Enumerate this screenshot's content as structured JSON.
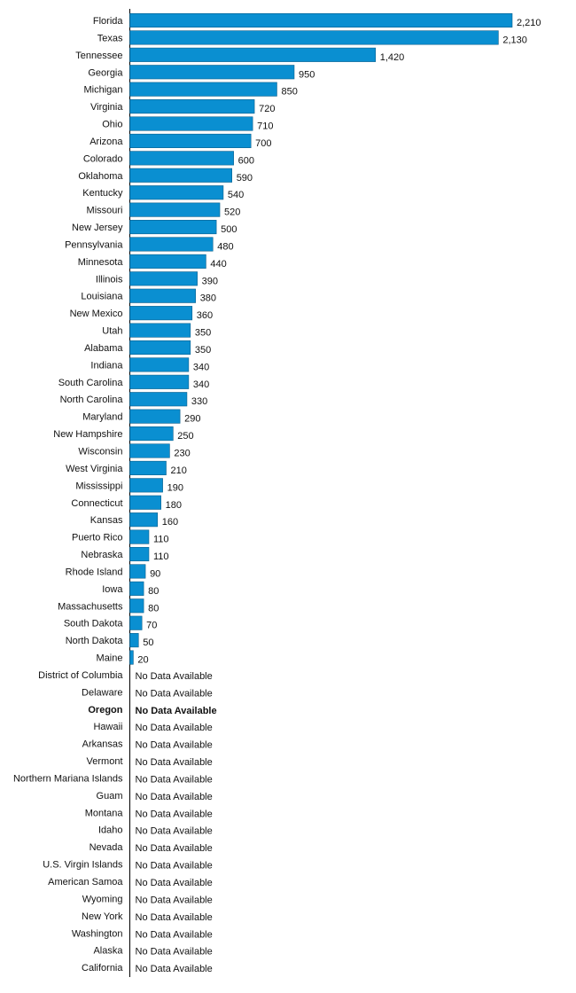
{
  "chart_data": {
    "type": "bar",
    "orientation": "horizontal",
    "bar_color": "#0a8fd1",
    "bar_edge_color": "#0b5f8c",
    "grid": false,
    "missing_label": "No Data Available",
    "highlighted_category": "Oregon",
    "categories": [
      "Florida",
      "Texas",
      "Tennessee",
      "Georgia",
      "Michigan",
      "Virginia",
      "Ohio",
      "Arizona",
      "Colorado",
      "Oklahoma",
      "Kentucky",
      "Missouri",
      "New Jersey",
      "Pennsylvania",
      "Minnesota",
      "Illinois",
      "Louisiana",
      "New Mexico",
      "Utah",
      "Alabama",
      "Indiana",
      "South Carolina",
      "North Carolina",
      "Maryland",
      "New Hampshire",
      "Wisconsin",
      "West Virginia",
      "Mississippi",
      "Connecticut",
      "Kansas",
      "Puerto Rico",
      "Nebraska",
      "Rhode Island",
      "Iowa",
      "Massachusetts",
      "South Dakota",
      "North Dakota",
      "Maine",
      "District of Columbia",
      "Delaware",
      "Oregon",
      "Hawaii",
      "Arkansas",
      "Vermont",
      "Northern Mariana Islands",
      "Guam",
      "Montana",
      "Idaho",
      "Nevada",
      "U.S. Virgin Islands",
      "American Samoa",
      "Wyoming",
      "New York",
      "Washington",
      "Alaska",
      "California"
    ],
    "values": [
      2210,
      2130,
      1420,
      950,
      850,
      720,
      710,
      700,
      600,
      590,
      540,
      520,
      500,
      480,
      440,
      390,
      380,
      360,
      350,
      350,
      340,
      340,
      330,
      290,
      250,
      230,
      210,
      190,
      180,
      160,
      110,
      110,
      90,
      80,
      80,
      70,
      50,
      20,
      null,
      null,
      null,
      null,
      null,
      null,
      null,
      null,
      null,
      null,
      null,
      null,
      null,
      null,
      null,
      null,
      null,
      null
    ],
    "value_labels": [
      "2,210",
      "2,130",
      "1,420",
      "950",
      "850",
      "720",
      "710",
      "700",
      "600",
      "590",
      "540",
      "520",
      "500",
      "480",
      "440",
      "390",
      "380",
      "360",
      "350",
      "350",
      "340",
      "340",
      "330",
      "290",
      "250",
      "230",
      "210",
      "190",
      "180",
      "160",
      "110",
      "110",
      "90",
      "80",
      "80",
      "70",
      "50",
      "20",
      "No Data Available",
      "No Data Available",
      "No Data Available",
      "No Data Available",
      "No Data Available",
      "No Data Available",
      "No Data Available",
      "No Data Available",
      "No Data Available",
      "No Data Available",
      "No Data Available",
      "No Data Available",
      "No Data Available",
      "No Data Available",
      "No Data Available",
      "No Data Available",
      "No Data Available",
      "No Data Available"
    ],
    "xlim": [
      0,
      2210
    ]
  }
}
